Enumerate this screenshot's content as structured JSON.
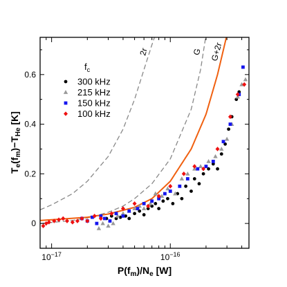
{
  "chart_data": {
    "type": "scatter",
    "title": "",
    "xlabel": "P(f_m)/N_e [W]",
    "ylabel": "T_e(f_m)−T_He [K]",
    "xscale": "log",
    "xlim": [
      8e-18,
      4.6e-16
    ],
    "ylim": [
      -0.1,
      0.75
    ],
    "x_ticks": [
      {
        "value": 1e-17,
        "base": "10",
        "exp": "−17"
      },
      {
        "value": 1e-16,
        "base": "10",
        "exp": "−16"
      }
    ],
    "y_ticks": [
      {
        "value": 0,
        "label": "0"
      },
      {
        "value": 0.2,
        "label": "0.2"
      },
      {
        "value": 0.4,
        "label": "0.4"
      },
      {
        "value": 0.6,
        "label": "0.6"
      }
    ],
    "legend": {
      "title": "f",
      "title_sub": "c",
      "placement": "top-left",
      "entries": [
        {
          "label": "300 kHz",
          "color": "#000000",
          "marker": "circle"
        },
        {
          "label": "215 kHz",
          "color": "#999999",
          "marker": "triangle"
        },
        {
          "label": "150 kHz",
          "color": "#1515ee",
          "marker": "square"
        },
        {
          "label": "100 kHz",
          "color": "#ee1111",
          "marker": "diamond"
        }
      ]
    },
    "curves": [
      {
        "label": "2r",
        "style": "dashed",
        "color": "#888888",
        "x": [
          8e-18,
          1e-17,
          1.5e-17,
          2e-17,
          3e-17,
          4e-17,
          5e-17,
          6e-17,
          7e-17,
          8e-17
        ],
        "y": [
          0.055,
          0.075,
          0.12,
          0.17,
          0.27,
          0.38,
          0.5,
          0.62,
          0.72,
          0.8
        ]
      },
      {
        "label": "G",
        "style": "dashed",
        "color": "#888888",
        "x": [
          8e-18,
          1e-17,
          1.5e-17,
          2e-17,
          3e-17,
          4e-17,
          5e-17,
          7e-17,
          1e-16,
          1.5e-16,
          1.8e-16,
          2e-16
        ],
        "y": [
          0.0,
          0.004,
          0.012,
          0.022,
          0.045,
          0.07,
          0.1,
          0.16,
          0.26,
          0.46,
          0.62,
          0.76
        ]
      },
      {
        "label": "G+2r",
        "style": "solid",
        "color": "#f06010",
        "x": [
          8e-18,
          1e-17,
          2e-17,
          3e-17,
          5e-17,
          7e-17,
          1e-16,
          1.5e-16,
          2e-16,
          2.5e-16,
          3e-16
        ],
        "y": [
          0.012,
          0.015,
          0.025,
          0.038,
          0.065,
          0.1,
          0.17,
          0.3,
          0.44,
          0.6,
          0.76
        ]
      }
    ],
    "series": [
      {
        "name": "300 kHz",
        "marker": "circle",
        "color": "#000000",
        "points": [
          [
            2.9e-17,
            0.02
          ],
          [
            3.2e-17,
            0.03
          ],
          [
            3.5e-17,
            0.02
          ],
          [
            3.8e-17,
            0.025
          ],
          [
            4.2e-17,
            0.03
          ],
          [
            4.5e-17,
            0.02
          ],
          [
            5e-17,
            0.04
          ],
          [
            5.5e-17,
            0.05
          ],
          [
            6e-17,
            0.035
          ],
          [
            6.5e-17,
            0.06
          ],
          [
            7e-17,
            0.07
          ],
          [
            7.5e-17,
            0.08
          ],
          [
            8e-17,
            0.06
          ],
          [
            8.7e-17,
            0.09
          ],
          [
            9.5e-17,
            0.1
          ],
          [
            1.05e-16,
            0.08
          ],
          [
            1.15e-16,
            0.12
          ],
          [
            1.25e-16,
            0.1
          ],
          [
            1.35e-16,
            0.15
          ],
          [
            1.5e-16,
            0.13
          ],
          [
            1.6e-16,
            0.18
          ],
          [
            1.75e-16,
            0.16
          ],
          [
            1.9e-16,
            0.2
          ],
          [
            2.1e-16,
            0.22
          ],
          [
            2.3e-16,
            0.24
          ],
          [
            2.5e-16,
            0.22
          ],
          [
            2.7e-16,
            0.28
          ],
          [
            2.9e-16,
            0.32
          ],
          [
            3.1e-16,
            0.38
          ],
          [
            3.3e-16,
            0.43
          ],
          [
            3.6e-16,
            0.5
          ],
          [
            3.8e-16,
            0.53
          ]
        ]
      },
      {
        "name": "215 kHz",
        "marker": "triangle",
        "color": "#999999",
        "points": [
          [
            2.5e-17,
            -0.02
          ],
          [
            2.7e-17,
            0.0
          ],
          [
            3e-17,
            -0.01
          ],
          [
            3.3e-17,
            0.0
          ],
          [
            3.6e-17,
            0.03
          ],
          [
            4e-17,
            0.04
          ],
          [
            4.5e-17,
            0.05
          ],
          [
            5e-17,
            0.06
          ],
          [
            5.5e-17,
            0.07
          ],
          [
            6e-17,
            0.06
          ],
          [
            6.8e-17,
            0.08
          ],
          [
            7.5e-17,
            0.12
          ],
          [
            8.5e-17,
            0.11
          ],
          [
            9.5e-17,
            0.14
          ],
          [
            1.1e-16,
            0.12
          ],
          [
            1.25e-16,
            0.18
          ],
          [
            1.4e-16,
            0.2
          ],
          [
            1.6e-16,
            0.22
          ],
          [
            1.8e-16,
            0.23
          ],
          [
            2.1e-16,
            0.25
          ],
          [
            2.4e-16,
            0.27
          ],
          [
            2.7e-16,
            0.3
          ],
          [
            3e-16,
            0.34
          ],
          [
            3.3e-16,
            0.4
          ],
          [
            3.7e-16,
            0.51
          ],
          [
            4e-16,
            0.56
          ],
          [
            4.3e-16,
            0.58
          ]
        ]
      },
      {
        "name": "150 kHz",
        "marker": "square",
        "color": "#1515ee",
        "points": [
          [
            1.8e-17,
            0.02
          ],
          [
            2e-17,
            0.01
          ],
          [
            2.2e-17,
            0.025
          ],
          [
            2.4e-17,
            0.0
          ],
          [
            2.6e-17,
            0.03
          ],
          [
            2.8e-17,
            0.02
          ],
          [
            3.1e-17,
            0.01
          ],
          [
            3.5e-17,
            0.04
          ],
          [
            4e-17,
            0.03
          ],
          [
            4.5e-17,
            0.05
          ],
          [
            5.3e-17,
            0.06
          ],
          [
            6e-17,
            0.08
          ],
          [
            7e-17,
            0.09
          ],
          [
            8e-17,
            0.1
          ],
          [
            9e-17,
            0.12
          ],
          [
            1e-16,
            0.13
          ],
          [
            1.2e-16,
            0.15
          ],
          [
            1.4e-16,
            0.18
          ],
          [
            1.7e-16,
            0.22
          ],
          [
            2e-16,
            0.23
          ],
          [
            2.3e-16,
            0.25
          ],
          [
            2.8e-16,
            0.33
          ],
          [
            3.2e-16,
            0.4
          ],
          [
            3.8e-16,
            0.52
          ],
          [
            4.1e-16,
            0.63
          ]
        ]
      },
      {
        "name": "100 kHz",
        "marker": "diamond",
        "color": "#ee1111",
        "points": [
          [
            8.5e-18,
            -0.01
          ],
          [
            9e-18,
            0.0
          ],
          [
            9.5e-18,
            0.005
          ],
          [
            1.05e-17,
            0.01
          ],
          [
            1.15e-17,
            0.015
          ],
          [
            1.25e-17,
            0.02
          ],
          [
            1.35e-17,
            0.01
          ],
          [
            1.5e-17,
            0.005
          ],
          [
            1.65e-17,
            0.01
          ],
          [
            1.8e-17,
            0.02
          ],
          [
            2e-17,
            0.01
          ],
          [
            2.3e-17,
            0.03
          ],
          [
            2.6e-17,
            0.02
          ],
          [
            3.2e-17,
            0.04
          ],
          [
            4e-17,
            0.06
          ],
          [
            5e-17,
            0.08
          ],
          [
            6.5e-17,
            0.07
          ],
          [
            8e-17,
            0.11
          ],
          [
            1e-16,
            0.15
          ],
          [
            1.3e-16,
            0.2
          ],
          [
            1.6e-16,
            0.23
          ],
          [
            1.9e-16,
            0.22
          ],
          [
            2.5e-16,
            0.3
          ],
          [
            3.2e-16,
            0.43
          ],
          [
            3.7e-16,
            0.52
          ],
          [
            4.2e-16,
            0.56
          ]
        ]
      }
    ]
  }
}
